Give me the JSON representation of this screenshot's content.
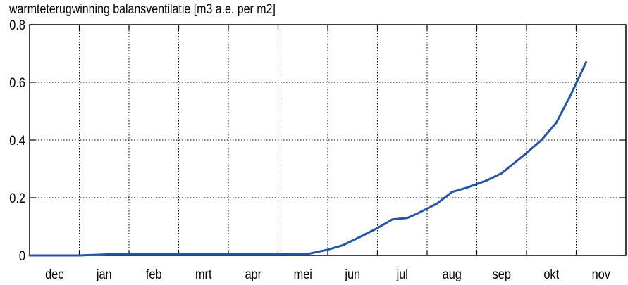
{
  "chart_data": {
    "type": "line",
    "title": "warmteterugwinning balansventilatie [m3 a.e. per m2]",
    "xlabel": "",
    "ylabel": "",
    "x_ticks": [
      "dec",
      "jan",
      "feb",
      "mrt",
      "apr",
      "mei",
      "jun",
      "jul",
      "aug",
      "sep",
      "okt",
      "nov"
    ],
    "y_ticks": [
      0,
      0.2,
      0.4,
      0.6,
      0.8
    ],
    "y_tick_labels": [
      "0",
      "0.2",
      "0.4",
      "0.6",
      "0.8"
    ],
    "ylim": [
      0,
      0.8
    ],
    "xlim": [
      0,
      12
    ],
    "x_unit": "months from start of dec",
    "grid": true,
    "line_color": "#2255a4",
    "series": [
      {
        "name": "",
        "x": [
          0.0,
          1.0,
          1.6,
          2.0,
          3.0,
          4.0,
          5.0,
          5.6,
          6.0,
          6.3,
          6.6,
          7.0,
          7.3,
          7.6,
          7.8,
          8.2,
          8.5,
          8.8,
          9.2,
          9.5,
          10.0,
          10.3,
          10.6,
          10.9,
          11.2
        ],
        "y": [
          0.0,
          0.0,
          0.004,
          0.004,
          0.004,
          0.004,
          0.004,
          0.005,
          0.02,
          0.035,
          0.06,
          0.095,
          0.125,
          0.13,
          0.145,
          0.18,
          0.22,
          0.235,
          0.26,
          0.285,
          0.355,
          0.4,
          0.46,
          0.56,
          0.67
        ]
      }
    ]
  }
}
